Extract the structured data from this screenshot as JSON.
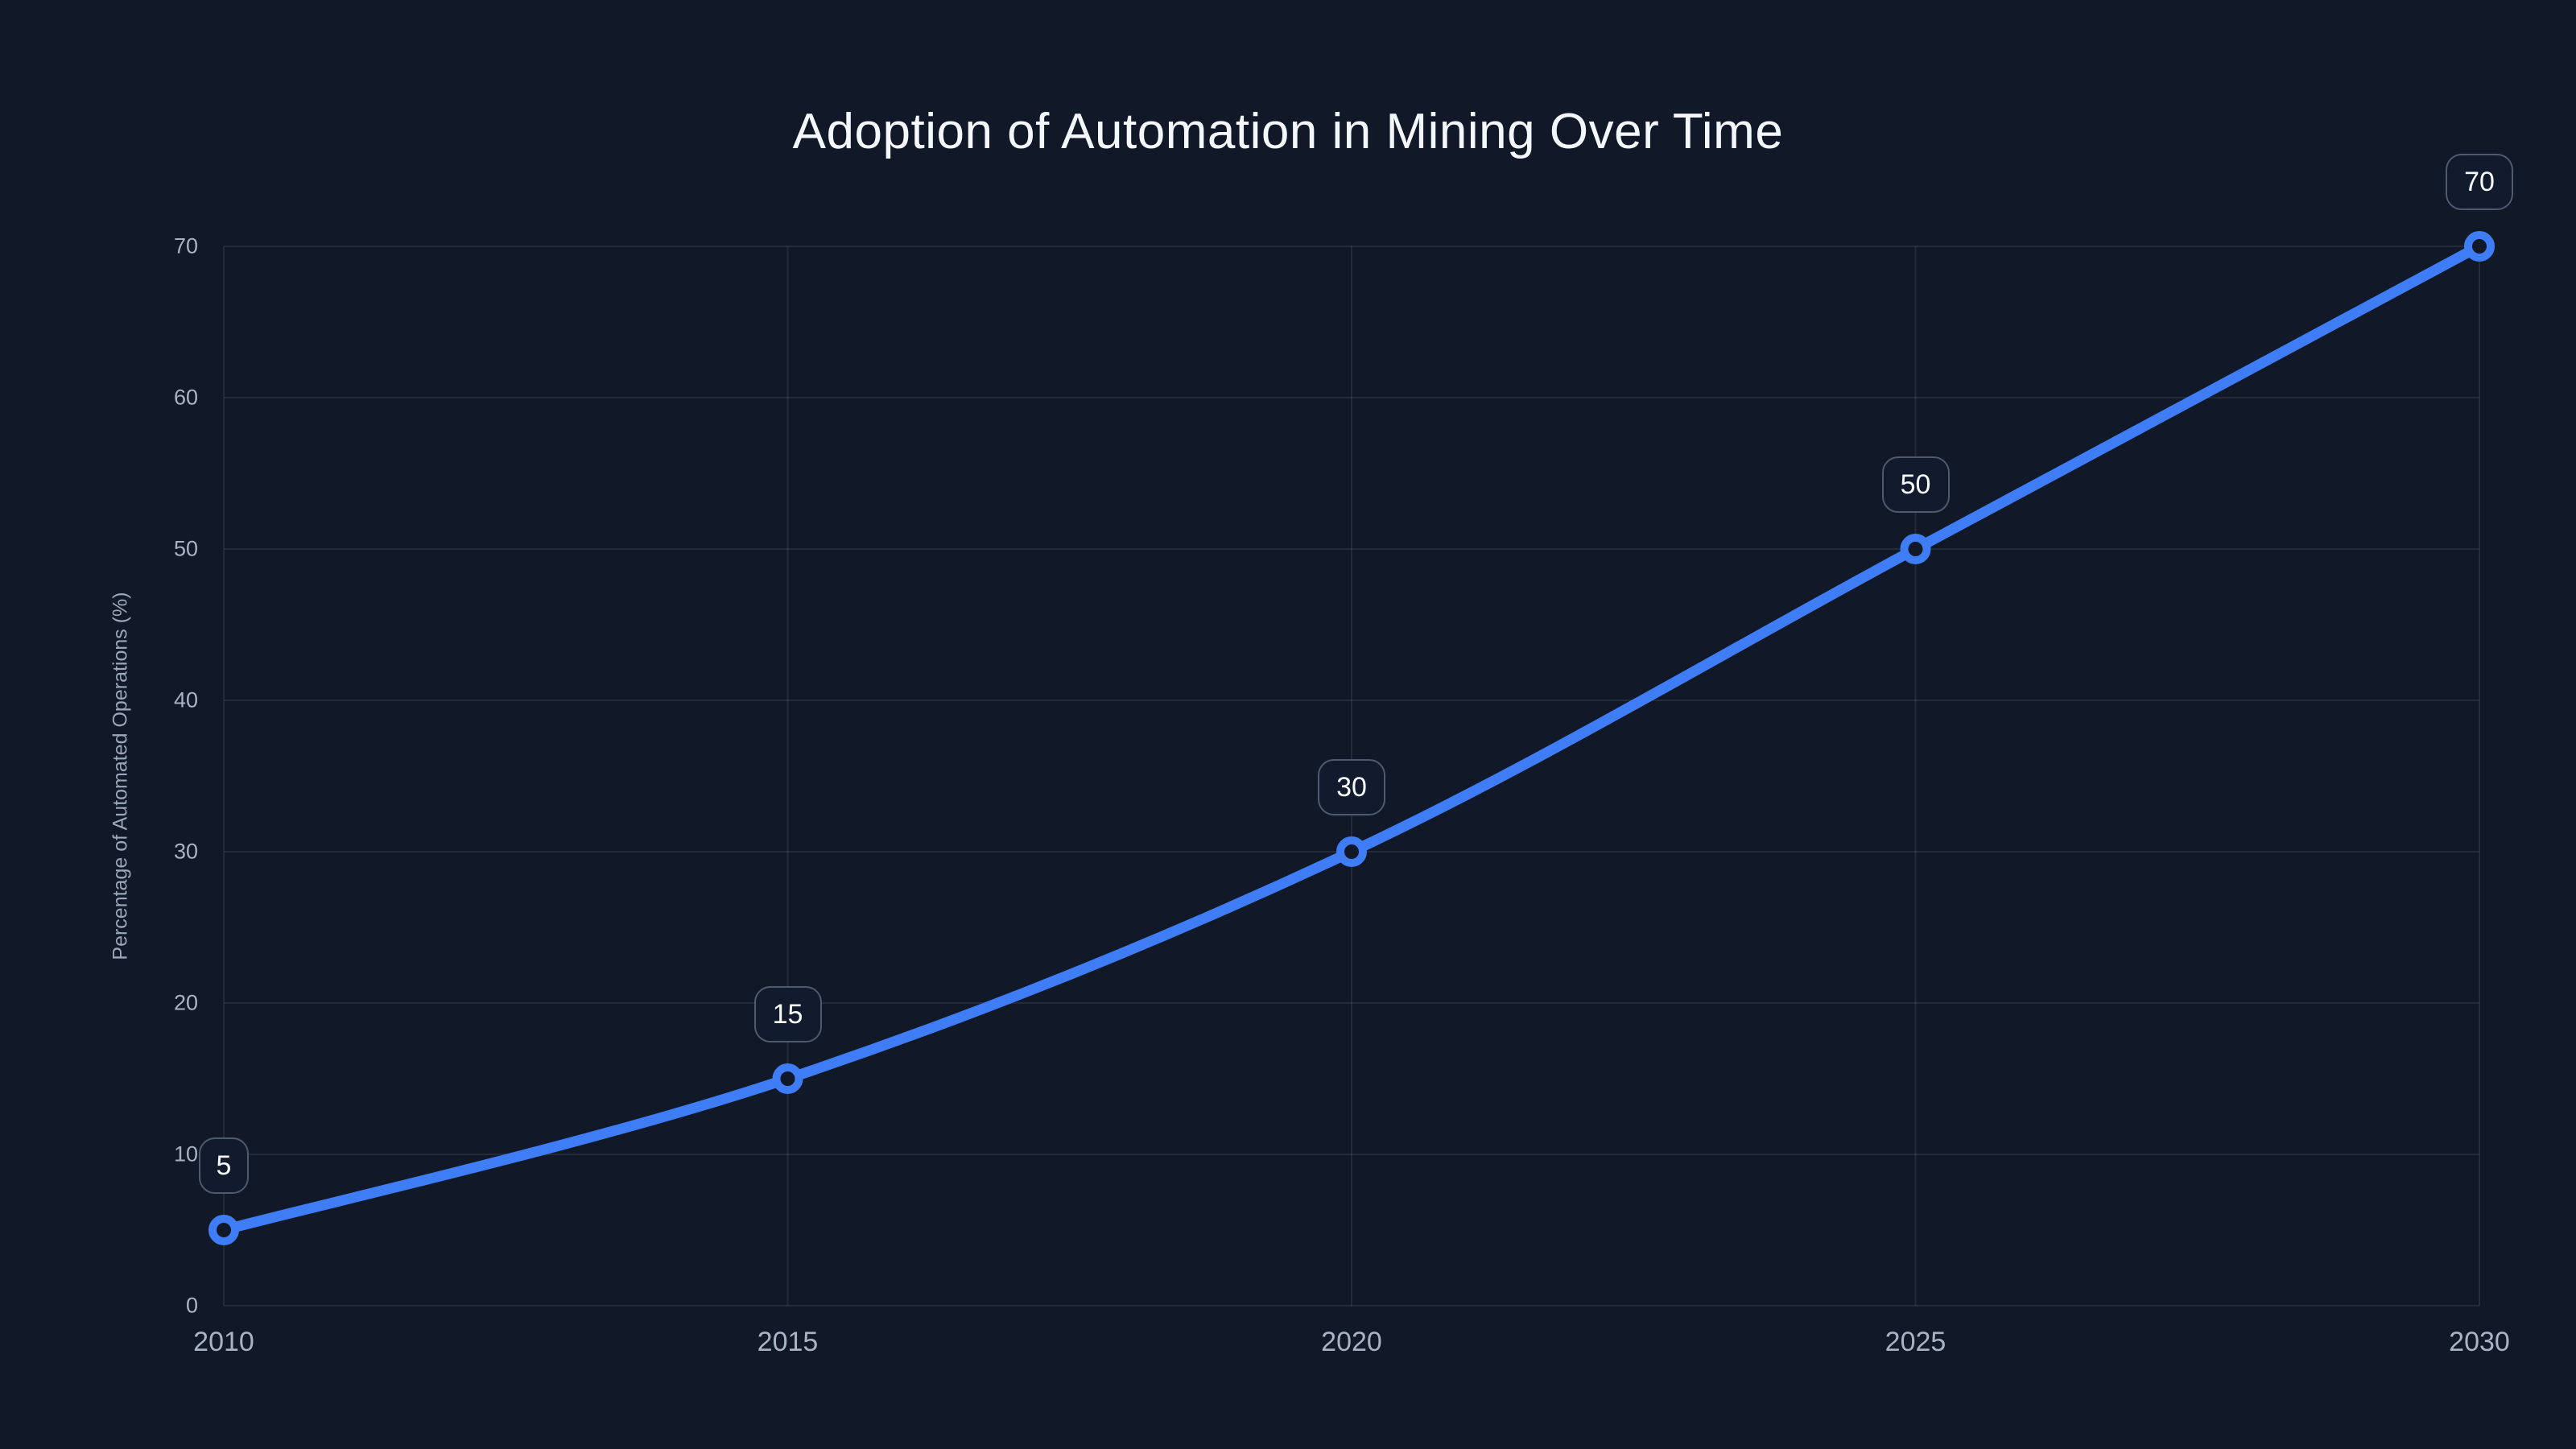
{
  "title": "Adoption of Automation in Mining Over Time",
  "chart_data": {
    "type": "line",
    "title": "Adoption of Automation in Mining Over Time",
    "categories": [
      "2010",
      "2015",
      "2020",
      "2025",
      "2030"
    ],
    "series": [
      {
        "name": "Percentage of Automated Operations",
        "values": [
          5,
          15,
          30,
          50,
          70
        ]
      }
    ],
    "point_labels": [
      "5",
      "15",
      "30",
      "50",
      "70"
    ],
    "xlabel": "",
    "ylabel": "Percentage of Automated Operations (%)",
    "ylim": [
      0,
      70
    ],
    "yticks": [
      0,
      10,
      20,
      30,
      40,
      50,
      60,
      70
    ],
    "grid": true,
    "legend": false,
    "curve": "smooth"
  },
  "colors": {
    "background": "#111827",
    "line": "#3e7df5",
    "marker_stroke": "#3e7df5",
    "marker_fill": "#111827",
    "grid": "rgba(160,175,200,0.13)",
    "tick_label": "#a8b3c4",
    "axis_title": "#9aa6ba",
    "chart_title": "#f4f7fb",
    "badge_background": "#121b2e",
    "badge_border": "#4e5a6d",
    "badge_text": "#f8fafc"
  }
}
